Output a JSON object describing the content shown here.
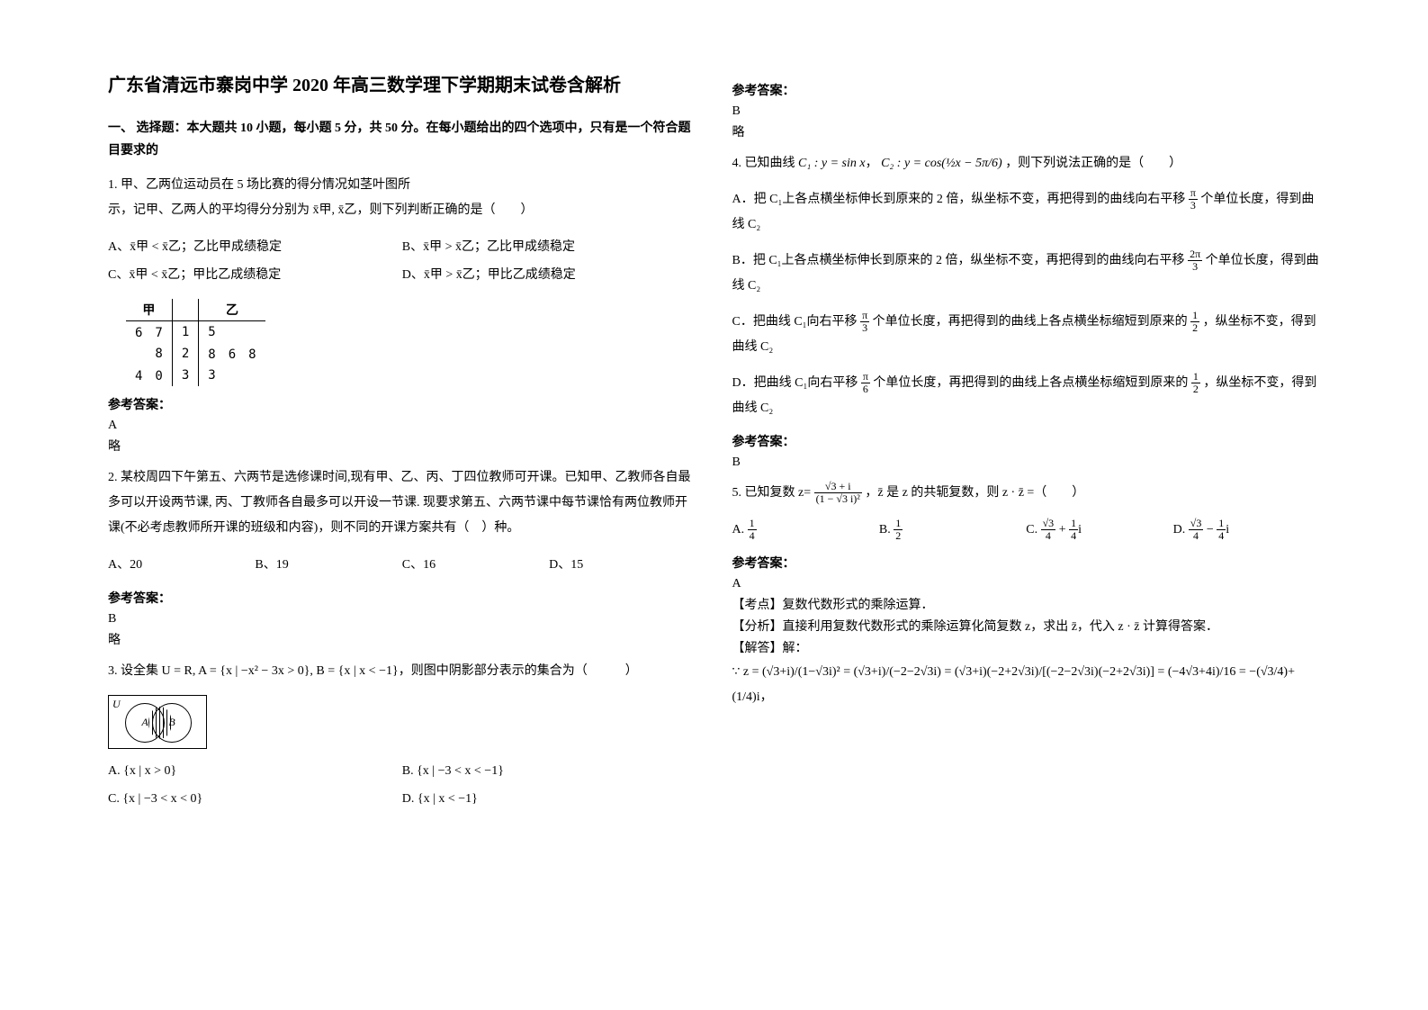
{
  "title": "广东省清远市寨岗中学 2020 年高三数学理下学期期末试卷含解析",
  "section1_header": "一、 选择题：本大题共 10 小题，每小题 5 分，共 50 分。在每小题给出的四个选项中，只有是一个符合题目要求的",
  "answer_label": "参考答案：",
  "brief": "略",
  "q1": {
    "text": "1. 甲、乙两位运动员在 5 场比赛的得分情况如茎叶图所",
    "text2": "示，记甲、乙两人的平均得分分别为 x̄甲, x̄乙，则下列判断正确的是（　　）",
    "optA": "A、x̄甲 < x̄乙；乙比甲成绩稳定",
    "optB": "B、x̄甲 > x̄乙；乙比甲成绩稳定",
    "optC": "C、x̄甲 < x̄乙；甲比乙成绩稳定",
    "optD": "D、x̄甲 > x̄乙；甲比乙成绩稳定",
    "answer": "A",
    "stemleaf": {
      "header_l": "甲",
      "header_r": "乙",
      "rows": [
        {
          "l": "6　7",
          "m": "1",
          "r": "5"
        },
        {
          "l": "8",
          "m": "2",
          "r": "8　6　8"
        },
        {
          "l": "4　0",
          "m": "3",
          "r": "3"
        }
      ]
    }
  },
  "q2": {
    "text": "2. 某校周四下午第五、六两节是选修课时间,现有甲、乙、丙、丁四位教师可开课。已知甲、乙教师各自最多可以开设两节课, 丙、丁教师各自最多可以开设一节课. 现要求第五、六两节课中每节课恰有两位教师开课(不必考虑教师所开课的班级和内容)，则不同的开课方案共有（　）种。",
    "optA": "A、20",
    "optB": "B、19",
    "optC": "C、16",
    "optD": "D、15",
    "answer": "B"
  },
  "q3": {
    "text": "3. 设全集 U = R, A = {x | −x² − 3x > 0}, B = {x | x < −1}，则图中阴影部分表示的集合为（　　　）",
    "optA": "A. {x | x > 0}",
    "optB": "B. {x | −3 < x < −1}",
    "optC": "C. {x | −3 < x < 0}",
    "optD": "D. {x | x < −1}",
    "answer": "B"
  },
  "q4": {
    "text_pre": "4. 已知曲线 ",
    "c1": "C₁ : y = sin x",
    "c2": "C₂ : y = cos(½x − 5π/6)",
    "text_post": "，则下列说法正确的是（　　）",
    "optA_pre": "A．把 C₁上各点横坐标伸长到原来的 2 倍，纵坐标不变，再把得到的曲线向右平移 ",
    "optA_frac": "π/3",
    "optA_post": " 个单位长度，得到曲线 C₂",
    "optB_pre": "B．把 C₁上各点横坐标伸长到原来的 2 倍，纵坐标不变，再把得到的曲线向右平移 ",
    "optB_frac": "2π/3",
    "optB_post": " 个单位长度，得到曲线 C₂",
    "optC_pre": "C．把曲线 C₁向右平移 ",
    "optC_frac": "π/3",
    "optC_mid": " 个单位长度，再把得到的曲线上各点横坐标缩短到原来的 ",
    "optC_frac2": "1/2",
    "optC_post": "，纵坐标不变，得到曲线 C₂",
    "optD_pre": "D．把曲线 C₁向右平移 ",
    "optD_frac": "π/6",
    "optD_mid": " 个单位长度，再把得到的曲线上各点横坐标缩短到原来的 ",
    "optD_frac2": "1/2",
    "optD_post": "，纵坐标不变，得到曲线 C₂",
    "answer": "B"
  },
  "q5": {
    "text_pre": "5. 已知复数 z= ",
    "expr": "(√3 + i) / (1 − √3 i)²",
    "text_post": "，z̄ 是 z 的共轭复数，则 z · z̄ =（　　）",
    "optA": "A. 1/4",
    "optB": "B. 1/2",
    "optC": "C. √3/4 + (1/4)i",
    "optD": "D. √3/4 − (1/4)i",
    "answer": "A",
    "analysis_kd": "【考点】复数代数形式的乘除运算．",
    "analysis_fx": "【分析】直接利用复数代数形式的乘除运算化简复数 z，求出 z̄，代入 z · z̄ 计算得答案．",
    "analysis_jd": "【解答】解：",
    "analysis_eq": "∵ z = (√3+i)/(1−√3i)² = (√3+i)/(−2−2√3i) = (√3+i)(−2+2√3i)/[(−2−2√3i)(−2+2√3i)] = (−4√3+4i)/16 = −(√3/4)+(1/4)i，"
  }
}
